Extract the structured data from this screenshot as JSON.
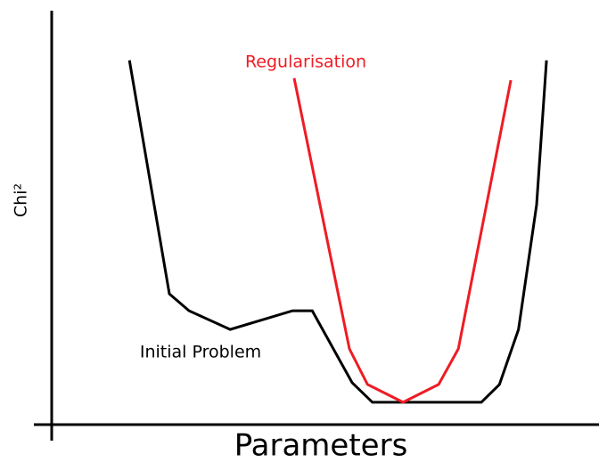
{
  "chart_data": {
    "type": "line",
    "x_label": "Parameters",
    "y_label": "Chi²",
    "xlim": [
      0,
      100
    ],
    "ylim": [
      0,
      100
    ],
    "series": [
      {
        "name": "Initial Problem",
        "color": "#000000",
        "x": [
          14.2,
          21.5,
          25.1,
          32.6,
          44.0,
          47.6,
          54.9,
          58.6,
          78.5,
          81.8,
          85.3,
          88.6,
          90.4
        ],
        "values": [
          88.0,
          31.6,
          27.5,
          23.0,
          27.5,
          27.5,
          10.1,
          5.4,
          5.4,
          9.7,
          23.0,
          53.1,
          88.0
        ]
      },
      {
        "name": "Regularisation",
        "color": "#ee1c24",
        "x": [
          44.3,
          54.4,
          57.7,
          64.2,
          70.7,
          74.3,
          83.9
        ],
        "values": [
          83.7,
          18.3,
          9.7,
          5.4,
          9.7,
          18.3,
          83.2
        ]
      }
    ]
  }
}
